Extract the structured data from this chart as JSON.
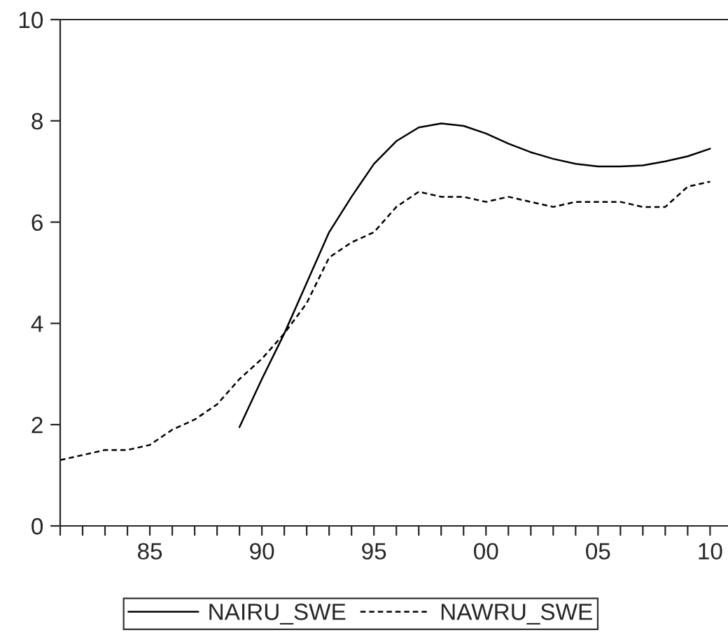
{
  "chart_data": {
    "type": "line",
    "x": [
      1981,
      1982,
      1983,
      1984,
      1985,
      1986,
      1987,
      1988,
      1989,
      1990,
      1991,
      1992,
      1993,
      1994,
      1995,
      1996,
      1997,
      1998,
      1999,
      2000,
      2001,
      2002,
      2003,
      2004,
      2005,
      2006,
      2007,
      2008,
      2009,
      2010
    ],
    "series": [
      {
        "name": "NAIRU_SWE",
        "color": "#000000",
        "line_style": "solid",
        "values": [
          null,
          null,
          null,
          null,
          null,
          null,
          null,
          null,
          1.95,
          2.9,
          3.8,
          4.8,
          5.8,
          6.5,
          7.15,
          7.6,
          7.87,
          7.95,
          7.9,
          7.75,
          7.55,
          7.38,
          7.25,
          7.15,
          7.1,
          7.1,
          7.12,
          7.2,
          7.3,
          7.45
        ]
      },
      {
        "name": "NAWRU_SWE",
        "color": "#000000",
        "line_style": "dashed",
        "values": [
          1.3,
          1.4,
          1.5,
          1.5,
          1.6,
          1.9,
          2.1,
          2.4,
          2.9,
          3.3,
          3.8,
          4.4,
          5.3,
          5.6,
          5.8,
          6.3,
          6.6,
          6.5,
          6.5,
          6.4,
          6.5,
          6.4,
          6.3,
          6.4,
          6.4,
          6.4,
          6.3,
          6.3,
          6.7,
          6.8
        ]
      }
    ],
    "xlim": [
      1981,
      2010.8
    ],
    "xticks": [
      {
        "value": 1981,
        "label": null
      },
      {
        "value": 1982,
        "label": null
      },
      {
        "value": 1983,
        "label": null
      },
      {
        "value": 1984,
        "label": null
      },
      {
        "value": 1985,
        "label": "85"
      },
      {
        "value": 1986,
        "label": null
      },
      {
        "value": 1987,
        "label": null
      },
      {
        "value": 1988,
        "label": null
      },
      {
        "value": 1989,
        "label": null
      },
      {
        "value": 1990,
        "label": "90"
      },
      {
        "value": 1991,
        "label": null
      },
      {
        "value": 1992,
        "label": null
      },
      {
        "value": 1993,
        "label": null
      },
      {
        "value": 1994,
        "label": null
      },
      {
        "value": 1995,
        "label": "95"
      },
      {
        "value": 1996,
        "label": null
      },
      {
        "value": 1997,
        "label": null
      },
      {
        "value": 1998,
        "label": null
      },
      {
        "value": 1999,
        "label": null
      },
      {
        "value": 2000,
        "label": "00"
      },
      {
        "value": 2001,
        "label": null
      },
      {
        "value": 2002,
        "label": null
      },
      {
        "value": 2003,
        "label": null
      },
      {
        "value": 2004,
        "label": null
      },
      {
        "value": 2005,
        "label": "05"
      },
      {
        "value": 2006,
        "label": null
      },
      {
        "value": 2007,
        "label": null
      },
      {
        "value": 2008,
        "label": null
      },
      {
        "value": 2009,
        "label": null
      },
      {
        "value": 2010,
        "label": "10"
      }
    ],
    "ylim": [
      0,
      10
    ],
    "yticks": [
      0,
      2,
      4,
      6,
      8,
      10
    ],
    "grid": false,
    "legend": "bottom",
    "marker": "none"
  }
}
